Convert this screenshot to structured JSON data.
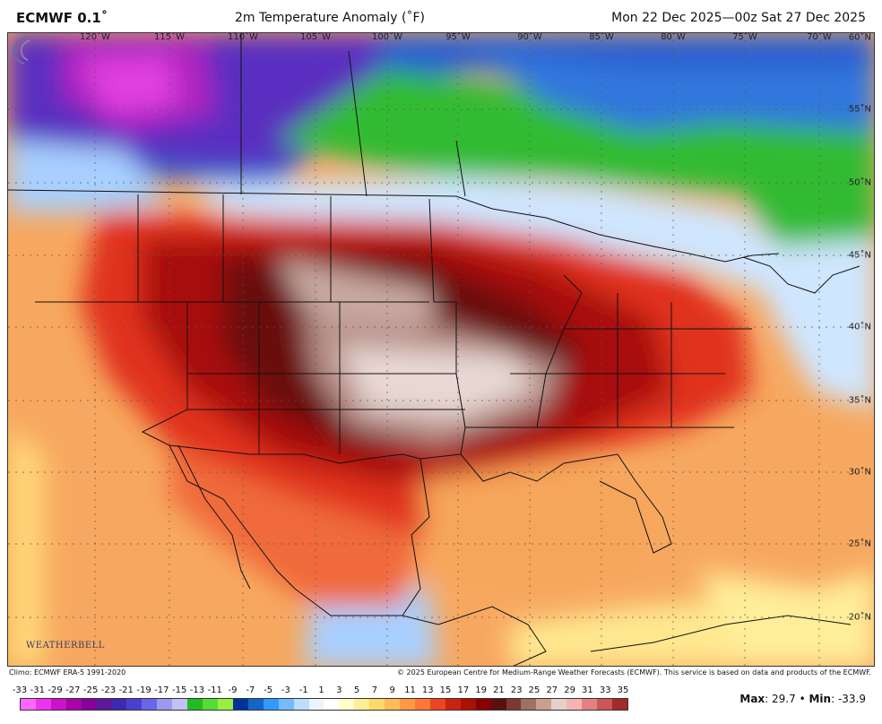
{
  "header": {
    "model": "ECMWF 0.1˚",
    "title": "2m Temperature Anomaly (˚F)",
    "valid": "Mon 22 Dec 2025—00z Sat 27 Dec 2025"
  },
  "map": {
    "lon_labels": [
      "120˚W",
      "115˚W",
      "110˚W",
      "105˚W",
      "100˚W",
      "95˚W",
      "90˚W",
      "85˚W",
      "80˚W",
      "75˚W",
      "70˚W"
    ],
    "lat_labels": [
      "60˚N",
      "55˚N",
      "50˚N",
      "45˚N",
      "40˚N",
      "35˚N",
      "30˚N",
      "25˚N",
      "20˚N"
    ],
    "logo_text": "WEATHERBELL"
  },
  "footer": {
    "climo": "Climo: ECMWF ERA-5 1991-2020",
    "copyright": "© 2025 European Centre for Medium-Range Weather Forecasts (ECMWF). This service is based on data and products of the ECMWF."
  },
  "colorbar": {
    "labels": [
      "-33",
      "-31",
      "-29",
      "-27",
      "-25",
      "-23",
      "-21",
      "-19",
      "-17",
      "-15",
      "-13",
      "-11",
      "-9",
      "-7",
      "-5",
      "-3",
      "-1",
      "1",
      "3",
      "5",
      "7",
      "9",
      "11",
      "13",
      "15",
      "17",
      "19",
      "21",
      "23",
      "25",
      "27",
      "29",
      "31",
      "33",
      "35"
    ],
    "colors": [
      "#ff66ff",
      "#ee33ee",
      "#cc11cc",
      "#aa00aa",
      "#880099",
      "#5a1a9a",
      "#3c2ab0",
      "#4a40d0",
      "#6a66e6",
      "#9a9af0",
      "#c2c2f8",
      "#22bb22",
      "#55dd33",
      "#99ee44",
      "#003399",
      "#1166cc",
      "#3399ff",
      "#77bbff",
      "#bbddff",
      "#eef4ff",
      "#ffffff",
      "#ffffcc",
      "#ffee99",
      "#ffd966",
      "#ffbb55",
      "#ff9944",
      "#ff7733",
      "#ee4422",
      "#cc2211",
      "#aa1100",
      "#880000",
      "#5a1010",
      "#7a3a30",
      "#a07060",
      "#c8a090",
      "#e8d0c8",
      "#f4b4b4",
      "#e68080",
      "#cc5555",
      "#a32a2a"
    ],
    "max_label": "Max",
    "max_value": "29.7",
    "min_label": "Min",
    "min_value": "-33.9"
  }
}
